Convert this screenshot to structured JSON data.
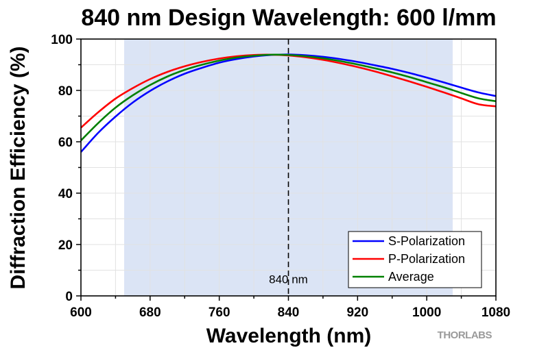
{
  "chart_data": {
    "type": "line",
    "title": "840 nm Design Wavelength: 600 l/mm",
    "xlabel": "Wavelength (nm)",
    "ylabel": "Diffraction Efficiency (%)",
    "xlim": [
      600,
      1080
    ],
    "ylim": [
      0,
      100
    ],
    "xticks": [
      600,
      680,
      760,
      840,
      920,
      1000,
      1080
    ],
    "yticks": [
      0,
      20,
      40,
      60,
      80,
      100
    ],
    "grid": true,
    "legend_position": "bottom-right",
    "shaded_region": {
      "x_start": 650,
      "x_end": 1030,
      "color": "#dbe4f5"
    },
    "reference_line": {
      "x": 840,
      "label": "840 nm",
      "style": "dashed"
    },
    "series": [
      {
        "name": "S-Polarization",
        "color": "#0000ff",
        "x": [
          600,
          620,
          640,
          660,
          680,
          700,
          720,
          740,
          760,
          780,
          800,
          820,
          840,
          860,
          880,
          900,
          920,
          940,
          960,
          980,
          1000,
          1020,
          1040,
          1060,
          1080
        ],
        "y": [
          56,
          63.5,
          69.8,
          75.3,
          79.8,
          83.5,
          86.5,
          88.8,
          90.8,
          92.2,
          93.2,
          93.8,
          94,
          93.7,
          93.1,
          92.2,
          91.1,
          89.8,
          88.4,
          86.8,
          85,
          83.1,
          81.1,
          79.2,
          77.8
        ]
      },
      {
        "name": "P-Polarization",
        "color": "#ff0000",
        "x": [
          600,
          620,
          640,
          660,
          680,
          700,
          720,
          740,
          760,
          780,
          800,
          820,
          840,
          860,
          880,
          900,
          920,
          940,
          960,
          980,
          1000,
          1020,
          1040,
          1060,
          1080
        ],
        "y": [
          65.5,
          71.5,
          76.8,
          80.9,
          84.4,
          87.2,
          89.4,
          91.1,
          92.4,
          93.3,
          93.8,
          93.9,
          93.6,
          92.9,
          91.9,
          90.6,
          89.1,
          87.4,
          85.5,
          83.5,
          81.4,
          79.2,
          76.9,
          74.6,
          73.8
        ]
      },
      {
        "name": "Average",
        "color": "#008000",
        "x": [
          600,
          620,
          640,
          660,
          680,
          700,
          720,
          740,
          760,
          780,
          800,
          820,
          840,
          860,
          880,
          900,
          920,
          940,
          960,
          980,
          1000,
          1020,
          1040,
          1060,
          1080
        ],
        "y": [
          60.5,
          67.3,
          73.3,
          78.1,
          82.1,
          85.4,
          88,
          90,
          91.6,
          92.8,
          93.5,
          93.9,
          93.8,
          93.3,
          92.5,
          91.4,
          90.1,
          88.6,
          87,
          85.2,
          83.2,
          81.2,
          79,
          76.9,
          75.8
        ]
      }
    ]
  },
  "logo": {
    "text": "THORLABS"
  }
}
